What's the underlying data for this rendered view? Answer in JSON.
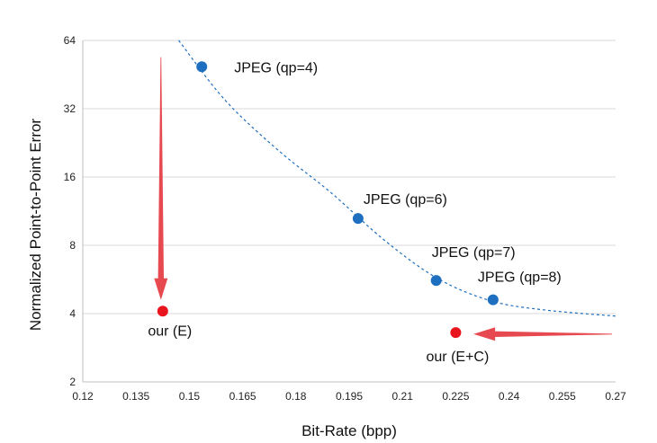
{
  "chart_data": {
    "type": "scatter",
    "title": "",
    "xlabel": "Bit-Rate (bpp)",
    "ylabel": "Normalized Point-to-Point Error",
    "xlim": [
      0.12,
      0.27
    ],
    "ylim": [
      2,
      64
    ],
    "yscale": "log2",
    "grid": "horizontal",
    "x_ticks": [
      "0.12",
      "0.135",
      "0.15",
      "0.165",
      "0.18",
      "0.195",
      "0.21",
      "0.225",
      "0.24",
      "0.255",
      "0.27"
    ],
    "y_ticks": [
      "2",
      "4",
      "8",
      "16",
      "32",
      "64"
    ],
    "series": [
      {
        "color": "#1f6fc0",
        "points": [
          {
            "x": 0.1535,
            "y": 49,
            "label": "JPEG (qp=4)"
          },
          {
            "x": 0.1975,
            "y": 10.5,
            "label": "JPEG (qp=6)"
          },
          {
            "x": 0.2195,
            "y": 5.6,
            "label": "JPEG (qp=7)"
          },
          {
            "x": 0.2355,
            "y": 4.6,
            "label": "JPEG (qp=8)"
          }
        ],
        "trend_line": {
          "style": "dashed",
          "points": [
            [
              0.147,
              64
            ],
            [
              0.16,
              35
            ],
            [
              0.175,
              21
            ],
            [
              0.19,
              13.6
            ],
            [
              0.205,
              8.4
            ],
            [
              0.22,
              5.7
            ],
            [
              0.235,
              4.55
            ],
            [
              0.25,
              4.15
            ],
            [
              0.27,
              3.9
            ]
          ]
        }
      },
      {
        "color": "#e8141e",
        "points": [
          {
            "x": 0.1425,
            "y": 4.1,
            "label": "our (E)"
          },
          {
            "x": 0.225,
            "y": 3.3,
            "label": "our (E+C)"
          }
        ]
      }
    ],
    "arrows": [
      {
        "color": "#e64a50",
        "from": [
          0.142,
          54
        ],
        "to": [
          0.142,
          4.6
        ]
      },
      {
        "color": "#e64a50",
        "from": [
          0.269,
          3.25
        ],
        "to": [
          0.23,
          3.25
        ]
      }
    ]
  }
}
